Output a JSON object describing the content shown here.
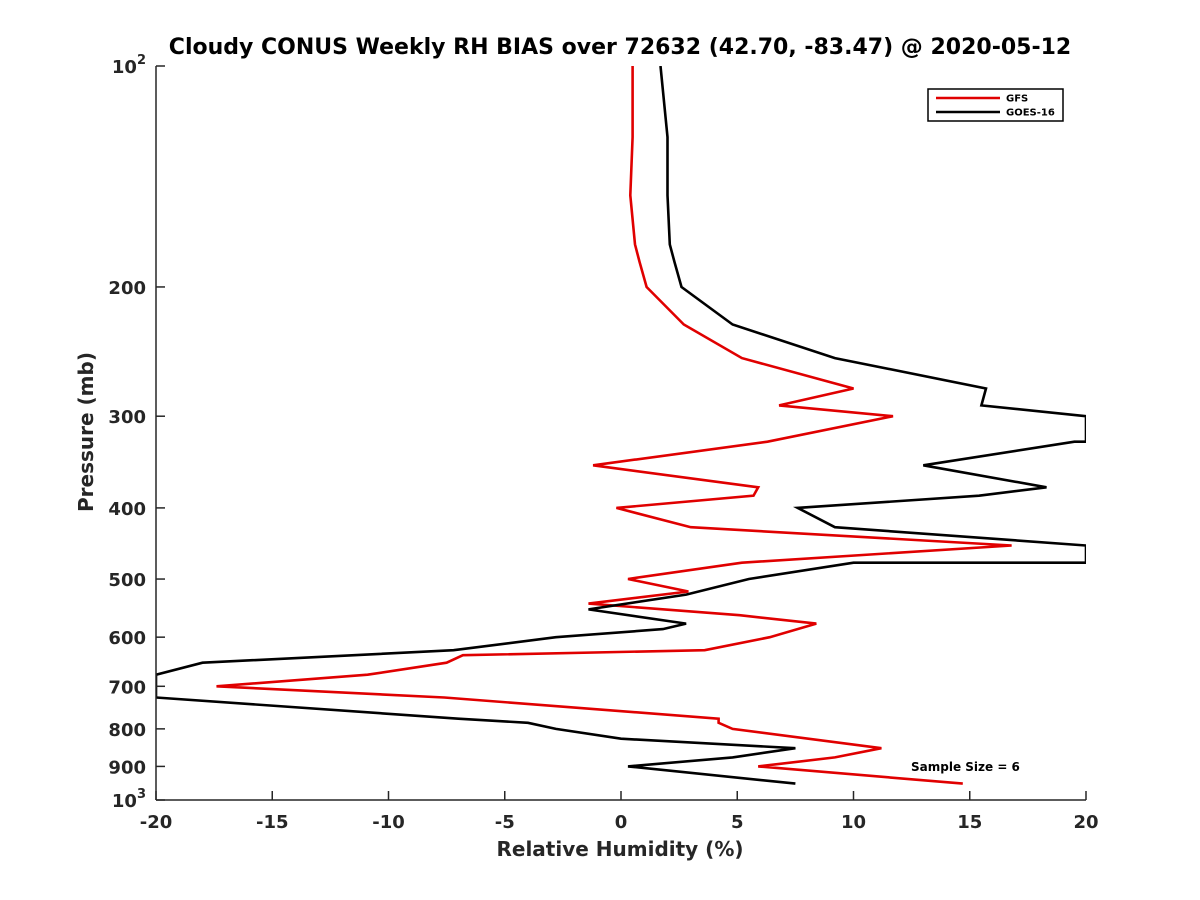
{
  "chart_data": {
    "type": "line",
    "title": "Cloudy CONUS Weekly RH BIAS over 72632 (42.70, -83.47) @ 2020-05-12",
    "xlabel": "Relative Humidity (%)",
    "ylabel": "Pressure (mb)",
    "xlim": [
      -20,
      20
    ],
    "ylim": [
      1000,
      100
    ],
    "y_scale": "log",
    "y_reversed": true,
    "grid": false,
    "legend_position": "top-right",
    "x_ticks": [
      -20,
      -15,
      -10,
      -5,
      0,
      5,
      10,
      15,
      20
    ],
    "x_tick_labels": [
      "-20",
      "-15",
      "-10",
      "-5",
      "0",
      "5",
      "10",
      "15",
      "20"
    ],
    "y_ticks": [
      100,
      200,
      300,
      400,
      500,
      600,
      700,
      800,
      900,
      1000
    ],
    "y_tick_labels": [
      {
        "base": "10",
        "exp": "2"
      },
      {
        "base": "200",
        "exp": ""
      },
      {
        "base": "300",
        "exp": ""
      },
      {
        "base": "400",
        "exp": ""
      },
      {
        "base": "500",
        "exp": ""
      },
      {
        "base": "600",
        "exp": ""
      },
      {
        "base": "700",
        "exp": ""
      },
      {
        "base": "800",
        "exp": ""
      },
      {
        "base": "900",
        "exp": ""
      },
      {
        "base": "10",
        "exp": "3"
      }
    ],
    "annotation": "Sample Size = 6",
    "series": [
      {
        "name": "GFS",
        "color": "#e00000",
        "points": [
          [
            0.5,
            100
          ],
          [
            0.5,
            125
          ],
          [
            0.4,
            150
          ],
          [
            0.6,
            175
          ],
          [
            0.8,
            185
          ],
          [
            1.1,
            200
          ],
          [
            2.7,
            225
          ],
          [
            5.2,
            250
          ],
          [
            10.0,
            275
          ],
          [
            6.8,
            290
          ],
          [
            11.7,
            300
          ],
          [
            6.3,
            325
          ],
          [
            -1.2,
            350
          ],
          [
            5.9,
            375
          ],
          [
            5.7,
            385
          ],
          [
            -0.2,
            400
          ],
          [
            3.0,
            425
          ],
          [
            16.8,
            450
          ],
          [
            5.2,
            475
          ],
          [
            0.3,
            500
          ],
          [
            2.9,
            520
          ],
          [
            -1.4,
            540
          ],
          [
            5.1,
            560
          ],
          [
            8.4,
            575
          ],
          [
            6.4,
            600
          ],
          [
            3.6,
            625
          ],
          [
            -6.8,
            635
          ],
          [
            -7.5,
            650
          ],
          [
            -10.9,
            675
          ],
          [
            -17.4,
            700
          ],
          [
            -7.6,
            725
          ],
          [
            4.2,
            775
          ],
          [
            4.2,
            785
          ],
          [
            4.8,
            800
          ],
          [
            11.2,
            850
          ],
          [
            9.2,
            875
          ],
          [
            5.9,
            900
          ],
          [
            14.7,
            950
          ]
        ]
      },
      {
        "name": "GOES-16",
        "color": "#000000",
        "points": [
          [
            1.7,
            100
          ],
          [
            2.0,
            125
          ],
          [
            2.0,
            150
          ],
          [
            2.1,
            175
          ],
          [
            2.3,
            185
          ],
          [
            2.6,
            200
          ],
          [
            4.8,
            225
          ],
          [
            9.2,
            250
          ],
          [
            15.7,
            275
          ],
          [
            15.5,
            290
          ],
          [
            20.0,
            300
          ],
          [
            20.0,
            325
          ],
          [
            19.5,
            325
          ],
          [
            13.0,
            350
          ],
          [
            18.3,
            375
          ],
          [
            15.4,
            385
          ],
          [
            7.6,
            400
          ],
          [
            9.2,
            425
          ],
          [
            20.0,
            450
          ],
          [
            20.0,
            475
          ],
          [
            10.0,
            475
          ],
          [
            5.5,
            500
          ],
          [
            2.8,
            525
          ],
          [
            -1.4,
            550
          ],
          [
            2.8,
            575
          ],
          [
            1.8,
            585
          ],
          [
            -2.8,
            600
          ],
          [
            -7.2,
            625
          ],
          [
            -18.0,
            650
          ],
          [
            -20.0,
            675
          ],
          [
            -20.0,
            725
          ],
          [
            -7.0,
            775
          ],
          [
            -4.0,
            785
          ],
          [
            -2.8,
            800
          ],
          [
            0.0,
            825
          ],
          [
            7.5,
            850
          ],
          [
            4.8,
            875
          ],
          [
            0.3,
            900
          ],
          [
            7.5,
            950
          ]
        ]
      }
    ]
  }
}
